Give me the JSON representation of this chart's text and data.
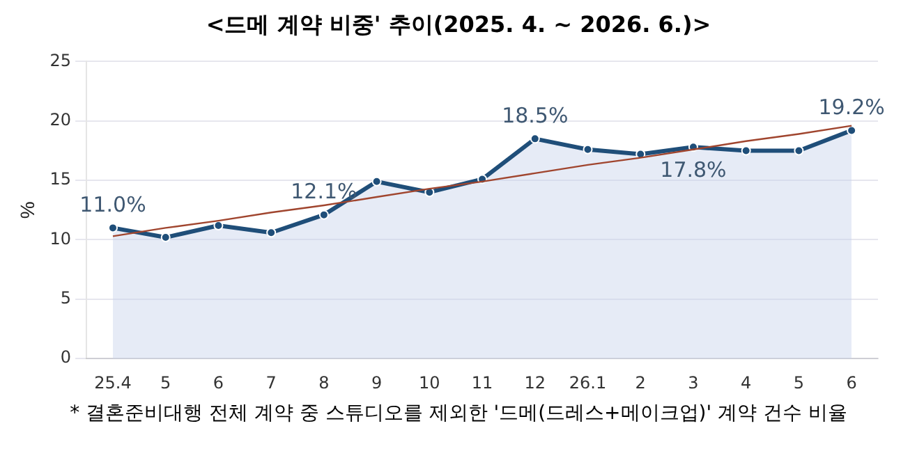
{
  "chart_data": {
    "type": "area",
    "title": "<드메 계약 비중' 추이(2025. 4. ~ 2026. 6.)>",
    "ylabel": "%",
    "annotations": [
      "* 결혼준비대행 전체 계약 중 스튜디오를 제외한 '드메(드레스+메이크업)' 계약 건수 비율"
    ],
    "categories": [
      "25.4",
      "5",
      "6",
      "7",
      "8",
      "9",
      "10",
      "11",
      "12",
      "26.1",
      "2",
      "3",
      "4",
      "5",
      "6"
    ],
    "series": [
      {
        "color": "#1f4e79",
        "values": [
          11.0,
          10.2,
          11.2,
          10.6,
          12.1,
          14.9,
          14.0,
          15.1,
          18.5,
          17.6,
          17.2,
          17.8,
          17.5,
          17.5,
          19.2
        ],
        "value_labels": [
          "11.0%",
          null,
          null,
          null,
          "12.1%",
          null,
          null,
          null,
          "18.5%",
          null,
          null,
          "17.8%",
          null,
          null,
          "19.2%"
        ]
      },
      {
        "type": "line",
        "color": "#a0452e",
        "marker": "none",
        "values": [
          10.3,
          11.0,
          11.6,
          12.3,
          12.9,
          13.6,
          14.3,
          14.9,
          15.6,
          16.3,
          16.9,
          17.6,
          18.3,
          18.9,
          19.6
        ]
      }
    ],
    "ylim": [
      0,
      25
    ],
    "yticks": [
      0,
      5,
      10,
      15,
      20,
      25
    ],
    "grid": "y",
    "marker": "circle",
    "legend": false
  }
}
